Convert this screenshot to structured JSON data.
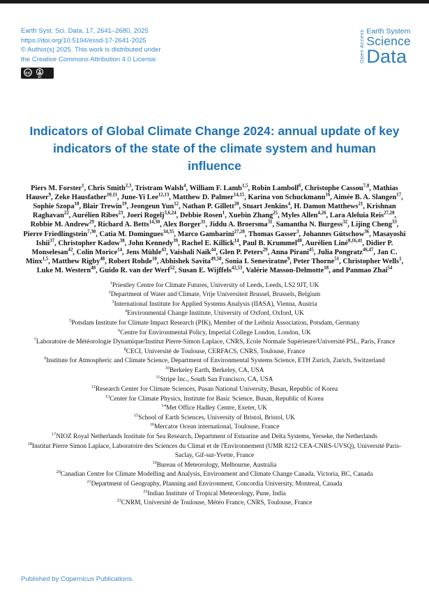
{
  "page": {
    "header": {
      "journal_line": "Earth Syst. Sci. Data, 17, 2641–2680, 2025",
      "doi": "https://doi.org/10.5194/essd-17-2641-2025",
      "license_line1": "© Author(s) 2025. This work is distributed under",
      "license_line2": "the Creative Commons Attribution 4.0 License.",
      "cc_badge_label": "BY"
    },
    "logo": {
      "open_access": "Open Access",
      "line1": "Earth System",
      "line2": "Science",
      "line3": "Data",
      "color": "#2f7cb2"
    },
    "title": "Indicators of Global Climate Change 2024: annual update of key indicators of the state of the climate system and human influence",
    "authors": [
      {
        "name": "Piers M. Forster",
        "sup": "1"
      },
      {
        "name": "Chris Smith",
        "sup": "2,3"
      },
      {
        "name": "Tristram Walsh",
        "sup": "4"
      },
      {
        "name": "William F. Lamb",
        "sup": "1,5"
      },
      {
        "name": "Robin Lamboll",
        "sup": "6"
      },
      {
        "name": "Christophe Cassou",
        "sup": "7,8"
      },
      {
        "name": "Mathias Hauser",
        "sup": "9"
      },
      {
        "name": "Zeke Hausfather",
        "sup": "10,11"
      },
      {
        "name": "June-Yi Lee",
        "sup": "12,13"
      },
      {
        "name": "Matthew D. Palmer",
        "sup": "14,15"
      },
      {
        "name": "Karina von Schuckmann",
        "sup": "16"
      },
      {
        "name": "Aimée B. A. Slangen",
        "sup": "17"
      },
      {
        "name": "Sophie Szopa",
        "sup": "18"
      },
      {
        "name": "Blair Trewin",
        "sup": "19"
      },
      {
        "name": "Jeongeun Yun",
        "sup": "12"
      },
      {
        "name": "Nathan P. Gillett",
        "sup": "20"
      },
      {
        "name": "Stuart Jenkins",
        "sup": "4"
      },
      {
        "name": "H. Damon Matthews",
        "sup": "21"
      },
      {
        "name": "Krishnan Raghavan",
        "sup": "22"
      },
      {
        "name": "Aurélien Ribes",
        "sup": "23"
      },
      {
        "name": "Joeri Rogelj",
        "sup": "3,6,24"
      },
      {
        "name": "Debbie Rosen",
        "sup": "1"
      },
      {
        "name": "Xuebin Zhang",
        "sup": "25"
      },
      {
        "name": "Myles Allen",
        "sup": "4,26"
      },
      {
        "name": "Lara Aleluia Reis",
        "sup": "27,28"
      },
      {
        "name": "Robbie M. Andrew",
        "sup": "29"
      },
      {
        "name": "Richard A. Betts",
        "sup": "14,30"
      },
      {
        "name": "Alex Borger",
        "sup": "31"
      },
      {
        "name": "Jiddu A. Broersma",
        "sup": "31"
      },
      {
        "name": "Samantha N. Burgess",
        "sup": "32"
      },
      {
        "name": "Lijing Cheng",
        "sup": "33"
      },
      {
        "name": "Pierre Friedlingstein",
        "sup": "7,30"
      },
      {
        "name": "Catia M. Domingues",
        "sup": "34,35"
      },
      {
        "name": "Marco Gambarini",
        "sup": "27,28"
      },
      {
        "name": "Thomas Gasser",
        "sup": "3"
      },
      {
        "name": "Johannes Gütschow",
        "sup": "36"
      },
      {
        "name": "Masayoshi Ishii",
        "sup": "37"
      },
      {
        "name": "Christopher Kadow",
        "sup": "38"
      },
      {
        "name": "John Kennedy",
        "sup": "39"
      },
      {
        "name": "Rachel E. Killick",
        "sup": "14"
      },
      {
        "name": "Paul B. Krummel",
        "sup": "40"
      },
      {
        "name": "Aurélien Liné",
        "sup": "8,16,41"
      },
      {
        "name": "Didier P. Monselesan",
        "sup": "42"
      },
      {
        "name": "Colin Morice",
        "sup": "14"
      },
      {
        "name": "Jens Mühle",
        "sup": "43"
      },
      {
        "name": "Vaishali Naik",
        "sup": "44"
      },
      {
        "name": "Glen P. Peters",
        "sup": "29"
      },
      {
        "name": "Anna Pirani",
        "sup": "45"
      },
      {
        "name": "Julia Pongratz",
        "sup": "46,47"
      },
      {
        "name": "Jan C. Minx",
        "sup": "1,5"
      },
      {
        "name": "Matthew Rigby",
        "sup": "48"
      },
      {
        "name": "Robert Rohde",
        "sup": "10"
      },
      {
        "name": "Abhishek Savita",
        "sup": "49,50"
      },
      {
        "name": "Sonia I. Seneviratne",
        "sup": "9"
      },
      {
        "name": "Peter Thorne",
        "sup": "51"
      },
      {
        "name": "Christopher Wells",
        "sup": "1"
      },
      {
        "name": "Luke M. Western",
        "sup": "48"
      },
      {
        "name": "Guido R. van der Werf",
        "sup": "52"
      },
      {
        "name": "Susan E. Wijffels",
        "sup": "42,53"
      },
      {
        "name": "Valérie Masson-Delmotte",
        "sup": "18"
      },
      {
        "name": "Panmao Zhai",
        "sup": "54"
      }
    ],
    "authors_last_prefix": "and ",
    "affiliations": [
      {
        "num": "1",
        "text": "Priestley Centre for Climate Futures, University of Leeds, Leeds, LS2 9JT, UK"
      },
      {
        "num": "2",
        "text": "Department of Water and Climate, Vrije Universiteit Brussel, Brussels, Belgium"
      },
      {
        "num": "3",
        "text": "International Institute for Applied Systems Analysis (IIASA), Vienna, Austria"
      },
      {
        "num": "4",
        "text": "Environmental Change Institute, University of Oxford, Oxford, UK"
      },
      {
        "num": "5",
        "text": "Potsdam Institute for Climate Impact Research (PIK), Member of the Leibniz Association, Potsdam, Germany"
      },
      {
        "num": "6",
        "text": "Centre for Environmental Policy, Imperial College London, London, UK"
      },
      {
        "num": "7",
        "text": "Laboratoire de Météorologie Dynamique/Institut Pierre-Simon Laplace, CNRS, Ecole Normale Supérieure/Université PSL, Paris, France"
      },
      {
        "num": "8",
        "text": "CECI, Université de Toulouse, CERFACS, CNRS, Toulouse, France"
      },
      {
        "num": "9",
        "text": "Institute for Atmospheric and Climate Science, Department of Environmental Systems Science, ETH Zurich, Zurich, Switzerland"
      },
      {
        "num": "10",
        "text": "Berkeley Earth, Berkeley, CA, USA"
      },
      {
        "num": "11",
        "text": "Stripe Inc., South San Francisco, CA, USA"
      },
      {
        "num": "12",
        "text": "Research Center for Climate Sciences, Pusan National University, Busan, Republic of Korea"
      },
      {
        "num": "13",
        "text": "Center for Climate Physics, Institute for Basic Science, Busan, Republic of Korea"
      },
      {
        "num": "14",
        "text": "Met Office Hadley Centre, Exeter, UK"
      },
      {
        "num": "15",
        "text": "School of Earth Sciences, University of Bristol, Bristol, UK"
      },
      {
        "num": "16",
        "text": "Mercator Ocean international, Toulouse, France"
      },
      {
        "num": "17",
        "text": "NIOZ Royal Netherlands Institute for Sea Research, Department of Estuarine and Delta Systems, Yerseke, the Netherlands"
      },
      {
        "num": "18",
        "text": "Institut Pierre Simon Laplace, Laboratoire des Sciences du Climat et de l'Environnement (UMR 8212 CEA-CNRS-UVSQ), Université Paris-Saclay, Gif-sur-Yvette, France"
      },
      {
        "num": "19",
        "text": "Bureau of Meteorology, Melbourne, Australia"
      },
      {
        "num": "20",
        "text": "Canadian Centre for Climate Modelling and Analysis, Environment and Climate Change Canada, Victoria, BC, Canada"
      },
      {
        "num": "21",
        "text": "Department of Geography, Planning and Environment, Concordia University, Montreal, Canada"
      },
      {
        "num": "22",
        "text": "Indian Institute of Tropical Meteorology, Pune, India"
      },
      {
        "num": "23",
        "text": "CNRM, Université de Toulouse, Météo France, CNRS, Toulouse, France"
      }
    ],
    "footer": "Published by Copernicus Publications.",
    "colors": {
      "accent_blue": "#3c88c9",
      "title_blue": "#1d70b4",
      "logo_blue": "#2f7cb2",
      "text_black": "#141414",
      "top_bar": "#1b1b1b"
    }
  }
}
